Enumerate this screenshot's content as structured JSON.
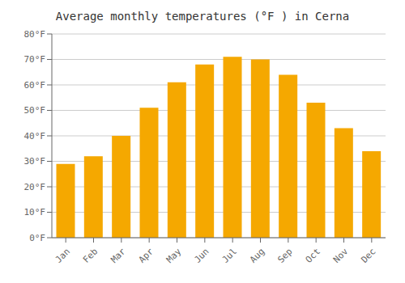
{
  "chart_data": {
    "type": "bar",
    "title": "Average monthly temperatures (°F ) in Cerna",
    "categories": [
      "Jan",
      "Feb",
      "Mar",
      "Apr",
      "May",
      "Jun",
      "Jul",
      "Aug",
      "Sep",
      "Oct",
      "Nov",
      "Dec"
    ],
    "values": [
      29,
      32,
      40,
      51,
      61,
      68,
      71,
      70,
      64,
      53,
      43,
      34
    ],
    "color": "#F5A800",
    "ylim": [
      0,
      80
    ],
    "yticks": [
      {
        "value": 0,
        "label": "0°F"
      },
      {
        "value": 10,
        "label": "10°F"
      },
      {
        "value": 20,
        "label": "20°F"
      },
      {
        "value": 30,
        "label": "30°F"
      },
      {
        "value": 40,
        "label": "40°F"
      },
      {
        "value": 50,
        "label": "50°F"
      },
      {
        "value": 60,
        "label": "60°F"
      },
      {
        "value": 70,
        "label": "70°F"
      },
      {
        "value": 80,
        "label": "80°F"
      }
    ],
    "grid": true
  }
}
